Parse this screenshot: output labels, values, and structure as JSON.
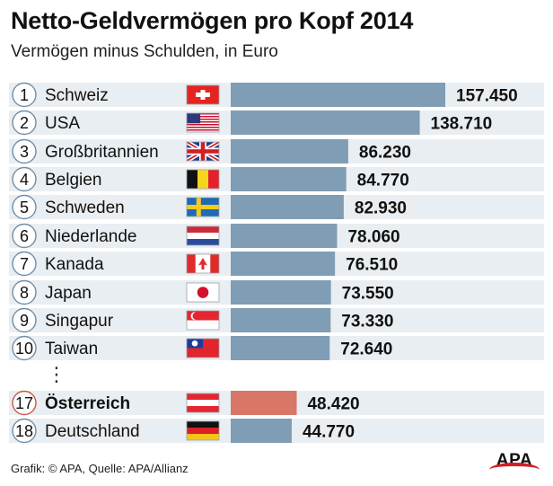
{
  "title": "Netto-Geldvermögen pro Kopf 2014",
  "subtitle": "Vermögen minus Schulden, in Euro",
  "footer": "Grafik: © APA, Quelle: APA/Allianz",
  "logo": "APA",
  "ellipsis": "⋮",
  "colors": {
    "bar": "#7f9db5",
    "highlight_bar": "#d87767",
    "highlight_circle": "#c9573f",
    "circle": "#6f8ea8",
    "row_bg": "#e9eef2"
  },
  "chart_data": {
    "type": "bar",
    "orientation": "horizontal",
    "title": "Netto-Geldvermögen pro Kopf 2014",
    "subtitle": "Vermögen minus Schulden, in Euro",
    "xlim": [
      0,
      160000
    ],
    "rows": [
      {
        "rank": "1",
        "country": "Schweiz",
        "value": 157450,
        "label": "157.450",
        "flag": "ch-flag",
        "highlight": false
      },
      {
        "rank": "2",
        "country": "USA",
        "value": 138710,
        "label": "138.710",
        "flag": "us-flag",
        "highlight": false
      },
      {
        "rank": "3",
        "country": "Großbritannien",
        "value": 86230,
        "label": "86.230",
        "flag": "gb-flag",
        "highlight": false
      },
      {
        "rank": "4",
        "country": "Belgien",
        "value": 84770,
        "label": "84.770",
        "flag": "be-flag",
        "highlight": false
      },
      {
        "rank": "5",
        "country": "Schweden",
        "value": 82930,
        "label": "82.930",
        "flag": "se-flag",
        "highlight": false
      },
      {
        "rank": "6",
        "country": "Niederlande",
        "value": 78060,
        "label": "78.060",
        "flag": "nl-flag",
        "highlight": false
      },
      {
        "rank": "7",
        "country": "Kanada",
        "value": 76510,
        "label": "76.510",
        "flag": "ca-flag",
        "highlight": false
      },
      {
        "rank": "8",
        "country": "Japan",
        "value": 73550,
        "label": "73.550",
        "flag": "jp-flag",
        "highlight": false
      },
      {
        "rank": "9",
        "country": "Singapur",
        "value": 73330,
        "label": "73.330",
        "flag": "sg-flag",
        "highlight": false
      },
      {
        "rank": "10",
        "country": "Taiwan",
        "value": 72640,
        "label": "72.640",
        "flag": "tw-flag",
        "highlight": false
      },
      {
        "rank": "17",
        "country": "Österreich",
        "value": 48420,
        "label": "48.420",
        "flag": "at-flag",
        "highlight": true
      },
      {
        "rank": "18",
        "country": "Deutschland",
        "value": 44770,
        "label": "44.770",
        "flag": "de-flag",
        "highlight": false
      }
    ]
  }
}
